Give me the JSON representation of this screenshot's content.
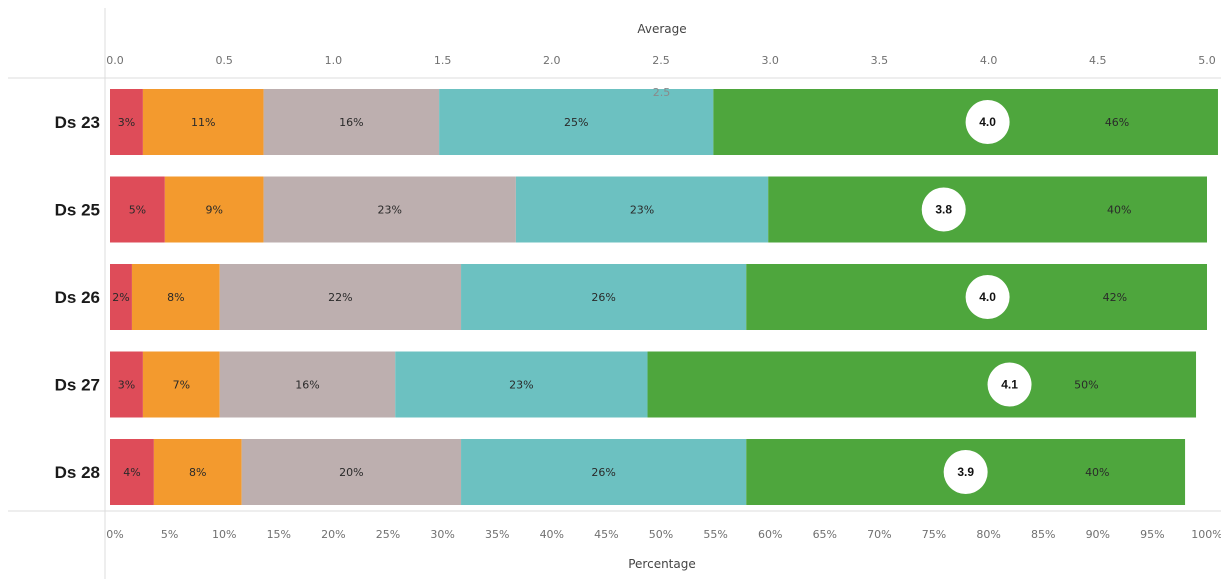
{
  "chart_data": {
    "type": "bar",
    "orientation": "horizontal",
    "stacked": true,
    "categories": [
      "Ds 23",
      "Ds 25",
      "Ds 26",
      "Ds 27",
      "Ds 28"
    ],
    "series": [
      {
        "color": "#de4c59",
        "values": [
          3,
          5,
          2,
          3,
          4
        ]
      },
      {
        "color": "#f39a2e",
        "values": [
          11,
          9,
          8,
          7,
          8
        ]
      },
      {
        "color": "#bdafaf",
        "values": [
          16,
          23,
          22,
          16,
          20
        ]
      },
      {
        "color": "#6cc1c1",
        "values": [
          25,
          23,
          26,
          23,
          26
        ]
      },
      {
        "color": "#4ea63d",
        "values": [
          46,
          40,
          42,
          50,
          40
        ]
      }
    ],
    "segment_labels": [
      [
        "3%",
        "11%",
        "16%",
        "25%",
        "46%"
      ],
      [
        "5%",
        "9%",
        "23%",
        "23%",
        "40%"
      ],
      [
        "2%",
        "8%",
        "22%",
        "26%",
        "42%"
      ],
      [
        "3%",
        "7%",
        "16%",
        "23%",
        "50%"
      ],
      [
        "4%",
        "8%",
        "20%",
        "26%",
        "40%"
      ]
    ],
    "averages": [
      4.0,
      3.8,
      4.0,
      4.1,
      3.9
    ],
    "average_labels": [
      "4.0",
      "3.8",
      "4.0",
      "4.1",
      "3.9"
    ],
    "xlabel": "Percentage",
    "xlim": [
      0,
      100
    ],
    "x_ticks": [
      "0%",
      "5%",
      "10%",
      "15%",
      "20%",
      "25%",
      "30%",
      "35%",
      "40%",
      "45%",
      "50%",
      "55%",
      "60%",
      "65%",
      "70%",
      "75%",
      "80%",
      "85%",
      "90%",
      "95%",
      "100%"
    ],
    "x2label": "Average",
    "x2lim": [
      0,
      5
    ],
    "x2_ticks": [
      "0.0",
      "0.5",
      "1.0",
      "1.5",
      "2.0",
      "2.5",
      "3.0",
      "3.5",
      "4.0",
      "4.5",
      "5.0"
    ],
    "reference_value": 2.5,
    "reference_label": "2.5",
    "grid": false,
    "legend": "none"
  }
}
